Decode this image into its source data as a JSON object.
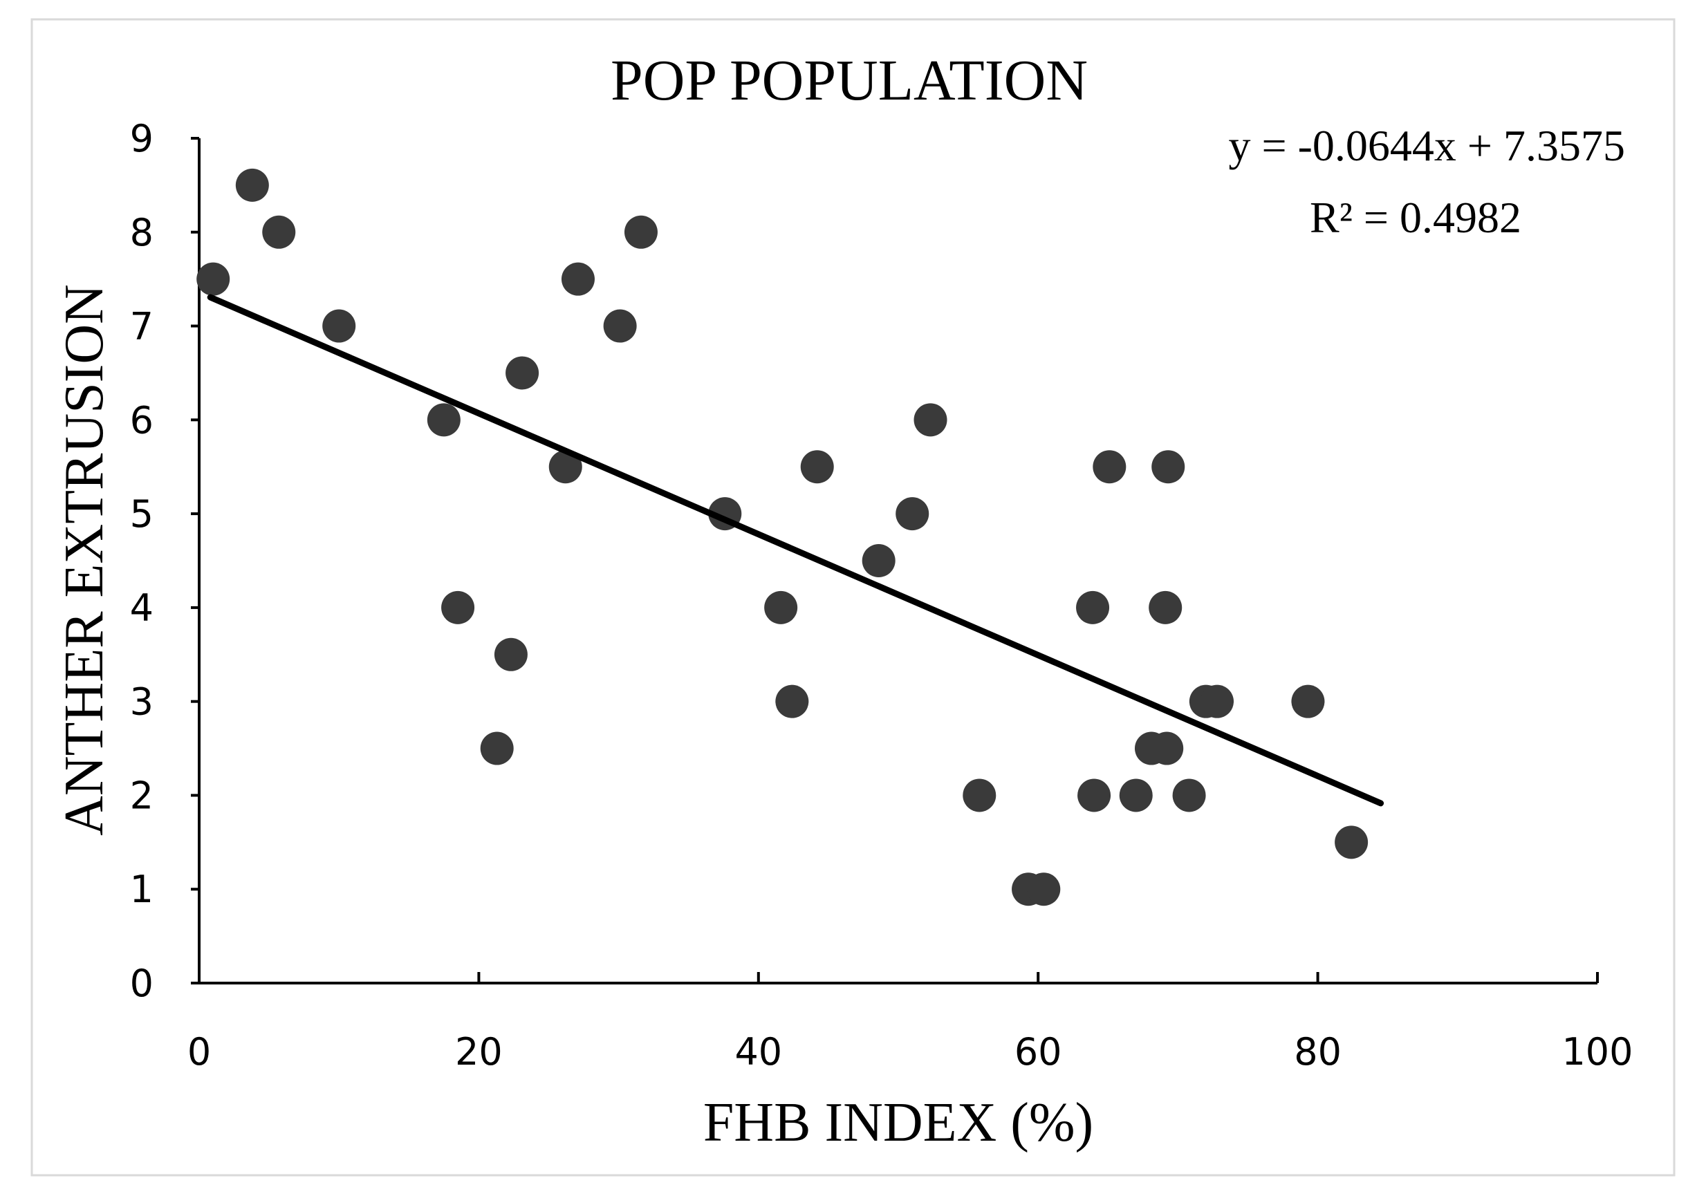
{
  "chart_data": {
    "type": "scatter",
    "title": "POP POPULATION",
    "xlabel": "FHB INDEX (%)",
    "ylabel": "ANTHER EXTRUSION",
    "xlim": [
      0,
      100
    ],
    "ylim": [
      0,
      9
    ],
    "x_ticks": [
      "0",
      "20",
      "40",
      "60",
      "80",
      "100"
    ],
    "y_ticks": [
      "0",
      "1",
      "2",
      "3",
      "4",
      "5",
      "6",
      "7",
      "8",
      "9"
    ],
    "grid": false,
    "marker_color": "#3a3a3a",
    "trendline_color": "#000000",
    "points": [
      {
        "x": 1.0,
        "y": 7.5
      },
      {
        "x": 3.8,
        "y": 8.5
      },
      {
        "x": 5.7,
        "y": 8.0
      },
      {
        "x": 10.0,
        "y": 7.0
      },
      {
        "x": 17.5,
        "y": 6.0
      },
      {
        "x": 18.5,
        "y": 4.0
      },
      {
        "x": 21.3,
        "y": 2.5
      },
      {
        "x": 22.3,
        "y": 3.5
      },
      {
        "x": 23.1,
        "y": 6.5
      },
      {
        "x": 26.2,
        "y": 5.5
      },
      {
        "x": 27.1,
        "y": 7.5
      },
      {
        "x": 30.1,
        "y": 7.0
      },
      {
        "x": 31.6,
        "y": 8.0
      },
      {
        "x": 37.6,
        "y": 5.0
      },
      {
        "x": 41.6,
        "y": 4.0
      },
      {
        "x": 42.4,
        "y": 3.0
      },
      {
        "x": 44.2,
        "y": 5.5
      },
      {
        "x": 48.6,
        "y": 4.5
      },
      {
        "x": 51.0,
        "y": 5.0
      },
      {
        "x": 52.3,
        "y": 6.0
      },
      {
        "x": 55.8,
        "y": 2.0
      },
      {
        "x": 59.3,
        "y": 1.0
      },
      {
        "x": 60.4,
        "y": 1.0
      },
      {
        "x": 63.9,
        "y": 4.0
      },
      {
        "x": 64.0,
        "y": 2.0
      },
      {
        "x": 65.1,
        "y": 5.5
      },
      {
        "x": 67.0,
        "y": 2.0
      },
      {
        "x": 68.1,
        "y": 2.5
      },
      {
        "x": 69.2,
        "y": 2.5
      },
      {
        "x": 69.1,
        "y": 4.0
      },
      {
        "x": 69.3,
        "y": 5.5
      },
      {
        "x": 70.8,
        "y": 2.0
      },
      {
        "x": 72.0,
        "y": 3.0
      },
      {
        "x": 72.8,
        "y": 3.0
      },
      {
        "x": 79.3,
        "y": 3.0
      },
      {
        "x": 82.4,
        "y": 1.5
      }
    ],
    "trendline": {
      "type": "linear",
      "slope": -0.0644,
      "intercept": 7.3575,
      "x_range": [
        0.8,
        84.5
      ],
      "equation": "y = -0.0644x + 7.3575",
      "r_squared": "R² = 0.4982"
    }
  }
}
